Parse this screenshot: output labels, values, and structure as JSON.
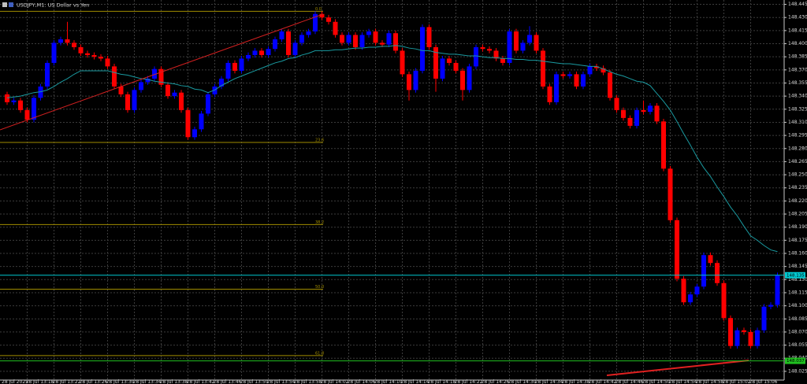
{
  "chart_data": {
    "type": "candlestick",
    "title": "USDJPY,M1: US Dollar vs Yen",
    "up_color": "#0000ff",
    "down_color": "#ff0000",
    "grid": true,
    "ylim": [
      148.015,
      148.45
    ],
    "yticks": [
      148.445,
      {
        "value": 148.43,
        "label": "148.430"
      },
      148.415,
      {
        "value": 148.4,
        "label": "148.400"
      },
      148.385,
      {
        "value": 148.37,
        "label": "148.370"
      },
      148.355,
      {
        "value": 148.34,
        "label": "148.340"
      },
      148.325,
      {
        "value": 148.31,
        "label": "148.310"
      },
      148.295,
      {
        "value": 148.28,
        "label": "148.280"
      },
      148.265,
      {
        "value": 148.25,
        "label": "148.250"
      },
      148.235,
      {
        "value": 148.22,
        "label": "148.220"
      },
      148.205,
      {
        "value": 148.19,
        "label": "148.190"
      },
      148.175,
      {
        "value": 148.16,
        "label": "148.160"
      },
      148.145,
      {
        "value": 148.13,
        "label": "148.130"
      },
      148.115,
      {
        "value": 148.1,
        "label": "148.100"
      },
      148.085,
      {
        "value": 148.07,
        "label": "148.070"
      },
      148.055,
      {
        "value": 148.04,
        "label": "148.040"
      },
      148.025
    ],
    "categories": [
      "28 Jul 2025",
      null,
      null,
      "28 Jul 13:18",
      null,
      null,
      null,
      "28 Jul 13:22",
      null,
      null,
      null,
      "28 Jul 13:26",
      null,
      null,
      null,
      "28 Jul 13:30",
      null,
      null,
      null,
      "28 Jul 13:34",
      null,
      null,
      null,
      "28 Jul 13:38",
      null,
      null,
      null,
      "28 Jul 13:42",
      null,
      null,
      null,
      "28 Jul 13:46",
      null,
      null,
      null,
      "28 Jul 13:50",
      null,
      null,
      null,
      "28 Jul 13:54",
      null,
      null,
      null,
      "28 Jul 13:58",
      null,
      null,
      null,
      "28 Jul 14:02",
      null,
      null,
      null,
      "28 Jul 14:06",
      null,
      null,
      null,
      "28 Jul 14:10",
      null,
      null,
      null,
      "28 Jul 14:14",
      null,
      null,
      null,
      "28 Jul 14:18",
      null,
      null,
      null,
      "28 Jul 14:22",
      null,
      null,
      null,
      "28 Jul 14:26",
      null,
      null,
      null,
      "28 Jul 14:30",
      null,
      null,
      null,
      "28 Jul 14:34",
      null,
      null,
      null,
      "28 Jul 14:38",
      null,
      null,
      null,
      "28 Jul 14:42",
      null,
      null,
      null,
      "28 Jul 14:46",
      null,
      null,
      null,
      "28 Jul 14:50",
      null,
      null,
      null,
      "28 Jul 14:54",
      null,
      null,
      null,
      "28 Jul 14:58",
      null,
      null,
      null,
      "28 Jul 15:02",
      null,
      null,
      null,
      "28 Jul 15:06",
      null,
      null,
      null,
      null
    ],
    "open": [
      148.342,
      148.333,
      148.335,
      148.324,
      148.313,
      148.338,
      148.351,
      148.378,
      148.401,
      148.405,
      148.401,
      148.396,
      148.389,
      148.387,
      148.385,
      148.383,
      148.374,
      148.351,
      148.342,
      148.324,
      148.347,
      148.356,
      148.36,
      148.371,
      148.353,
      148.34,
      148.344,
      148.324,
      148.293,
      148.302,
      148.32,
      148.342,
      148.351,
      148.36,
      148.378,
      148.369,
      148.383,
      148.387,
      148.392,
      148.387,
      148.394,
      148.405,
      148.414,
      148.387,
      148.401,
      148.41,
      148.414,
      148.434,
      148.43,
      148.425,
      148.41,
      148.401,
      148.41,
      148.396,
      148.41,
      148.414,
      148.401,
      148.399,
      148.412,
      148.392,
      148.365,
      148.347,
      148.369,
      148.419,
      148.396,
      148.36,
      148.383,
      148.378,
      148.369,
      148.347,
      148.374,
      148.396,
      148.394,
      148.392,
      148.383,
      148.378,
      148.414,
      148.392,
      148.401,
      148.41,
      148.392,
      148.351,
      148.333,
      148.365,
      148.363,
      148.365,
      148.351,
      148.365,
      148.374,
      148.372,
      148.367,
      148.338,
      148.324,
      148.315,
      148.306,
      148.324,
      148.322,
      148.329,
      148.311,
      148.257,
      148.198,
      148.131,
      148.104,
      148.113,
      148.122,
      148.158,
      148.149,
      148.126,
      148.086,
      148.054,
      148.072,
      148.07,
      148.054,
      148.072,
      148.099,
      148.101
    ],
    "high": [
      148.345,
      148.338,
      148.338,
      148.327,
      148.341,
      148.354,
      148.381,
      148.404,
      148.408,
      148.425,
      148.404,
      148.399,
      148.392,
      148.39,
      148.388,
      148.386,
      148.377,
      148.354,
      148.345,
      148.35,
      148.359,
      148.363,
      148.374,
      148.374,
      148.356,
      148.347,
      148.347,
      148.327,
      148.305,
      148.323,
      148.345,
      148.354,
      148.363,
      148.381,
      148.381,
      148.386,
      148.39,
      148.395,
      148.395,
      148.397,
      148.408,
      148.417,
      148.417,
      148.404,
      148.413,
      148.417,
      148.437,
      148.437,
      148.433,
      148.428,
      148.413,
      148.413,
      148.413,
      148.413,
      148.417,
      148.417,
      148.404,
      148.415,
      148.415,
      148.395,
      148.368,
      148.372,
      148.422,
      148.422,
      148.399,
      148.386,
      148.386,
      148.381,
      148.372,
      148.377,
      148.399,
      148.399,
      148.397,
      148.395,
      148.386,
      148.417,
      148.417,
      148.404,
      148.42,
      148.413,
      148.395,
      148.354,
      148.368,
      148.368,
      148.368,
      148.368,
      148.368,
      148.377,
      148.377,
      148.375,
      148.37,
      148.341,
      148.327,
      148.318,
      148.327,
      148.335,
      148.332,
      148.332,
      148.314,
      148.26,
      148.201,
      148.134,
      148.116,
      148.125,
      148.161,
      148.161,
      148.152,
      148.129,
      148.089,
      148.075,
      148.075,
      148.073,
      148.075,
      148.102,
      148.104,
      148.138
    ],
    "low": [
      148.33,
      148.33,
      148.321,
      148.31,
      148.31,
      148.335,
      148.348,
      148.375,
      148.398,
      148.398,
      148.393,
      148.386,
      148.384,
      148.382,
      148.38,
      148.371,
      148.348,
      148.339,
      148.321,
      148.321,
      148.344,
      148.353,
      148.357,
      148.35,
      148.337,
      148.337,
      148.321,
      148.29,
      148.29,
      148.299,
      148.317,
      148.339,
      148.348,
      148.357,
      148.366,
      148.366,
      148.38,
      148.384,
      148.384,
      148.384,
      148.391,
      148.402,
      148.384,
      148.384,
      148.398,
      148.407,
      148.411,
      148.427,
      148.422,
      148.407,
      148.398,
      148.398,
      148.393,
      148.393,
      148.407,
      148.398,
      148.396,
      148.396,
      148.389,
      148.362,
      148.335,
      148.344,
      148.366,
      148.393,
      148.345,
      148.357,
      148.375,
      148.366,
      148.335,
      148.344,
      148.371,
      148.391,
      148.389,
      148.38,
      148.375,
      148.375,
      148.389,
      148.389,
      148.398,
      148.389,
      148.348,
      148.33,
      148.33,
      148.36,
      148.36,
      148.348,
      148.348,
      148.362,
      148.369,
      148.364,
      148.335,
      148.321,
      148.312,
      148.303,
      148.303,
      148.319,
      148.319,
      148.308,
      148.254,
      148.195,
      148.128,
      148.101,
      148.101,
      148.11,
      148.119,
      148.146,
      148.123,
      148.083,
      148.051,
      148.051,
      148.067,
      148.051,
      148.051,
      148.069,
      148.096,
      148.098
    ],
    "close": [
      148.333,
      148.335,
      148.324,
      148.313,
      148.338,
      148.351,
      148.378,
      148.401,
      148.405,
      148.401,
      148.396,
      148.389,
      148.387,
      148.385,
      148.383,
      148.374,
      148.351,
      148.342,
      148.324,
      148.347,
      148.356,
      148.36,
      148.371,
      148.353,
      148.34,
      148.344,
      148.324,
      148.293,
      148.302,
      148.32,
      148.342,
      148.351,
      148.36,
      148.378,
      148.369,
      148.383,
      148.387,
      148.392,
      148.387,
      148.394,
      148.405,
      148.414,
      148.387,
      148.401,
      148.41,
      148.414,
      148.434,
      148.43,
      148.425,
      148.41,
      148.401,
      148.41,
      148.396,
      148.41,
      148.414,
      148.401,
      148.399,
      148.412,
      148.392,
      148.365,
      148.347,
      148.369,
      148.419,
      148.396,
      148.36,
      148.383,
      148.378,
      148.369,
      148.347,
      148.374,
      148.396,
      148.394,
      148.392,
      148.383,
      148.378,
      148.414,
      148.392,
      148.401,
      148.41,
      148.392,
      148.351,
      148.333,
      148.365,
      148.363,
      148.365,
      148.351,
      148.365,
      148.374,
      148.372,
      148.367,
      148.338,
      148.324,
      148.315,
      148.306,
      148.324,
      148.322,
      148.329,
      148.311,
      148.257,
      148.198,
      148.131,
      148.104,
      148.113,
      148.122,
      148.158,
      148.149,
      148.126,
      148.086,
      148.054,
      148.072,
      148.07,
      148.054,
      148.072,
      148.099,
      148.101,
      148.135
    ],
    "ma": {
      "color": "#1a9aa0",
      "values": [
        148.338,
        148.339,
        148.34,
        148.342,
        148.344,
        148.345,
        148.347,
        148.351,
        148.356,
        148.36,
        148.365,
        148.369,
        148.369,
        148.369,
        148.369,
        148.369,
        148.367,
        148.365,
        148.364,
        148.362,
        148.36,
        148.359,
        148.357,
        148.356,
        148.355,
        148.354,
        148.352,
        148.351,
        148.348,
        148.347,
        148.344,
        148.347,
        148.352,
        148.356,
        148.36,
        148.363,
        148.366,
        148.369,
        148.372,
        148.375,
        148.378,
        148.38,
        148.383,
        148.384,
        148.387,
        148.389,
        148.392,
        148.392,
        148.392,
        148.393,
        148.393,
        148.394,
        148.395,
        148.395,
        148.396,
        148.396,
        148.397,
        148.397,
        148.398,
        148.397,
        148.395,
        148.394,
        148.392,
        148.392,
        148.39,
        148.389,
        148.388,
        148.388,
        148.387,
        148.386,
        148.386,
        148.385,
        148.384,
        148.384,
        148.383,
        148.383,
        148.382,
        148.382,
        148.381,
        148.381,
        148.38,
        148.379,
        148.378,
        148.377,
        148.377,
        148.376,
        148.375,
        148.374,
        148.374,
        148.371,
        148.368,
        148.365,
        148.363,
        148.36,
        148.357,
        148.356,
        148.352,
        148.343,
        148.334,
        148.324,
        148.311,
        148.297,
        148.284,
        148.27,
        148.258,
        148.248,
        148.236,
        148.225,
        148.213,
        148.203,
        148.191,
        148.18,
        148.175,
        148.169,
        148.164,
        148.162
      ]
    },
    "fib_color": "#a08c00",
    "fib_levels": [
      {
        "label": "0.0",
        "value": 148.437
      },
      {
        "label": "23.6",
        "value": 148.287
      },
      {
        "label": "38.2",
        "value": 148.193
      },
      {
        "label": "50.0",
        "value": 148.119
      },
      {
        "label": "61.8",
        "value": 148.043
      }
    ],
    "price_lines": [
      {
        "label": "148.135",
        "value": 148.135,
        "color": "#00c8d0"
      },
      {
        "label": "148.037",
        "value": 148.037,
        "color": "#20c020"
      }
    ]
  }
}
